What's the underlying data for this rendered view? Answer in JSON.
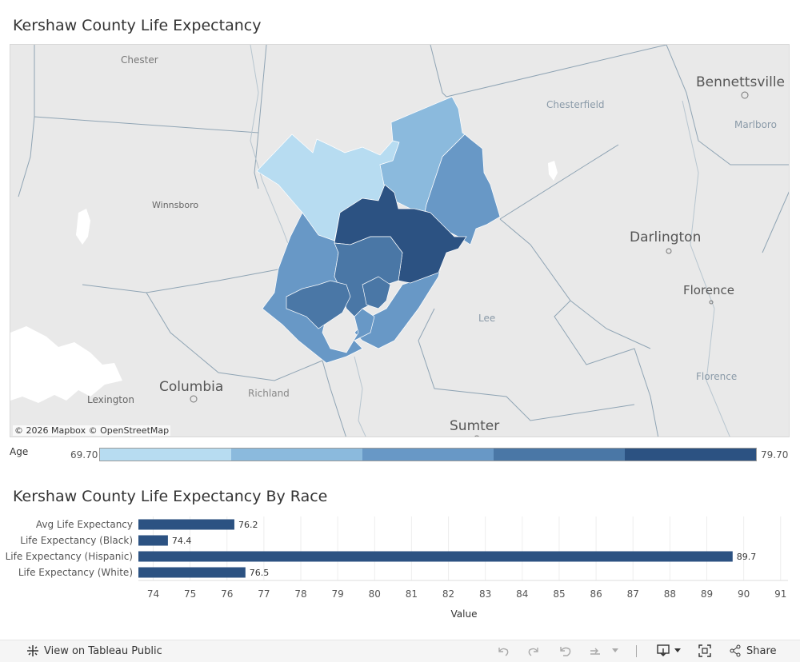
{
  "map": {
    "title": "Kershaw County Life Expectancy",
    "attribution": "© 2026 Mapbox  © OpenStreetMap",
    "place_labels": [
      {
        "text": "Chester"
      },
      {
        "text": "Winnsboro"
      },
      {
        "text": "Columbia"
      },
      {
        "text": "Lexington"
      },
      {
        "text": "Richland"
      },
      {
        "text": "Chesterfield"
      },
      {
        "text": "Bennettsville"
      },
      {
        "text": "Marlboro"
      },
      {
        "text": "Darlington"
      },
      {
        "text": "Florence"
      },
      {
        "text": "Florence"
      },
      {
        "text": "Lee"
      },
      {
        "text": "Sumter"
      }
    ],
    "legend": {
      "title": "Age",
      "min": "69.70",
      "max": "79.70",
      "colors": [
        "#b7dcf1",
        "#8bbadd",
        "#6898c6",
        "#4a77a6",
        "#2c5282"
      ]
    },
    "region_colors": {
      "lightest": "#b7dcf1",
      "light": "#8bbadd",
      "mid": "#6898c6",
      "dark": "#4a77a6",
      "darkest": "#2c5282"
    }
  },
  "chart_data": {
    "type": "bar",
    "title": "Kershaw County Life Expectancy By Race",
    "categories": [
      "Avg Life Expectancy",
      "Life Expectancy (Black)",
      "Life Expectancy (Hispanic)",
      "Life Expectancy (White)"
    ],
    "values": [
      76.2,
      74.4,
      89.7,
      76.5
    ],
    "value_labels": [
      "76.2",
      "74.4",
      "89.7",
      "76.5"
    ],
    "xlabel": "Value",
    "ylabel": "",
    "xlim": [
      73.6,
      91.2
    ],
    "ticks": [
      74,
      75,
      76,
      77,
      78,
      79,
      80,
      81,
      82,
      83,
      84,
      85,
      86,
      87,
      88,
      89,
      90,
      91
    ],
    "bar_color": "#2c5282",
    "grid": true
  },
  "footer": {
    "view_label": "View on Tableau Public",
    "share_label": "Share"
  }
}
